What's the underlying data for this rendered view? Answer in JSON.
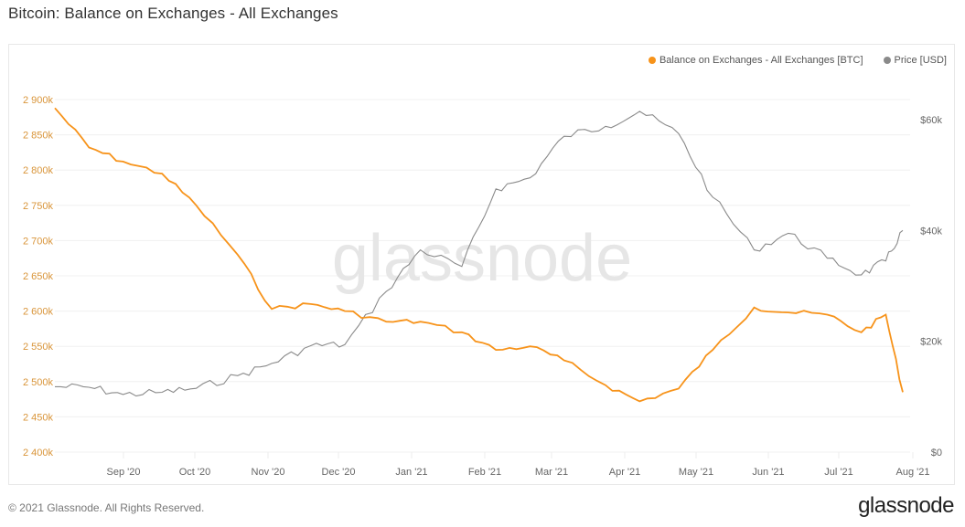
{
  "page": {
    "title": "Bitcoin: Balance on Exchanges - All Exchanges",
    "footer_copyright": "© 2021 Glassnode. All Rights Reserved.",
    "footer_logo": "glassnode",
    "watermark": "glassnode"
  },
  "legend": [
    {
      "label": "Balance on Exchanges - All Exchanges [BTC]",
      "color": "#f7931a"
    },
    {
      "label": "Price [USD]",
      "color": "#8a8a8a"
    }
  ],
  "axes": {
    "left_ticks": [
      "2 900k",
      "2 850k",
      "2 800k",
      "2 750k",
      "2 700k",
      "2 650k",
      "2 600k",
      "2 550k",
      "2 500k",
      "2 450k",
      "2 400k"
    ],
    "right_ticks": [
      "$60k",
      "$40k",
      "$20k",
      "$0"
    ],
    "x_ticks": [
      "Sep '20",
      "Oct '20",
      "Nov '20",
      "Dec '20",
      "Jan '21",
      "Feb '21",
      "Mar '21",
      "Apr '21",
      "May '21",
      "Jun '21",
      "Jul '21",
      "Aug '21"
    ]
  },
  "chart_data": {
    "type": "line",
    "title": "Bitcoin: Balance on Exchanges - All Exchanges",
    "xlabel": "",
    "ylabel_left": "Balance on Exchanges [BTC]",
    "ylabel_right": "Price [USD]",
    "ylim_left": [
      2400000,
      2900000
    ],
    "ylim_right": [
      0,
      64000
    ],
    "grid": true,
    "legend_position": "top-right",
    "x": [
      "2020-08-18",
      "2020-09-01",
      "2020-09-15",
      "2020-10-01",
      "2020-10-15",
      "2020-11-01",
      "2020-11-15",
      "2020-12-01",
      "2020-12-15",
      "2021-01-01",
      "2021-01-15",
      "2021-02-01",
      "2021-02-15",
      "2021-03-01",
      "2021-03-15",
      "2021-04-01",
      "2021-04-15",
      "2021-05-01",
      "2021-05-15",
      "2021-06-01",
      "2021-06-15",
      "2021-07-01",
      "2021-07-15",
      "2021-07-25",
      "2021-08-01"
    ],
    "series": [
      {
        "name": "Balance on Exchanges - All Exchanges [BTC]",
        "axis": "left",
        "color": "#f7931a",
        "values": [
          2888000,
          2832000,
          2812000,
          2795000,
          2750000,
          2680000,
          2603000,
          2610000,
          2600000,
          2585000,
          2585000,
          2570000,
          2545000,
          2550000,
          2530000,
          2495000,
          2472000,
          2490000,
          2545000,
          2605000,
          2598000,
          2595000,
          2570000,
          2595000,
          2485000
        ]
      },
      {
        "name": "Price [USD]",
        "axis": "right",
        "color": "#8a8a8a",
        "values": [
          11800,
          11700,
          10400,
          10800,
          11500,
          13800,
          16000,
          19200,
          19400,
          29000,
          36500,
          33500,
          47500,
          49500,
          57000,
          58800,
          61500,
          57500,
          46000,
          36500,
          39500,
          35000,
          32000,
          34500,
          40000
        ]
      }
    ]
  }
}
